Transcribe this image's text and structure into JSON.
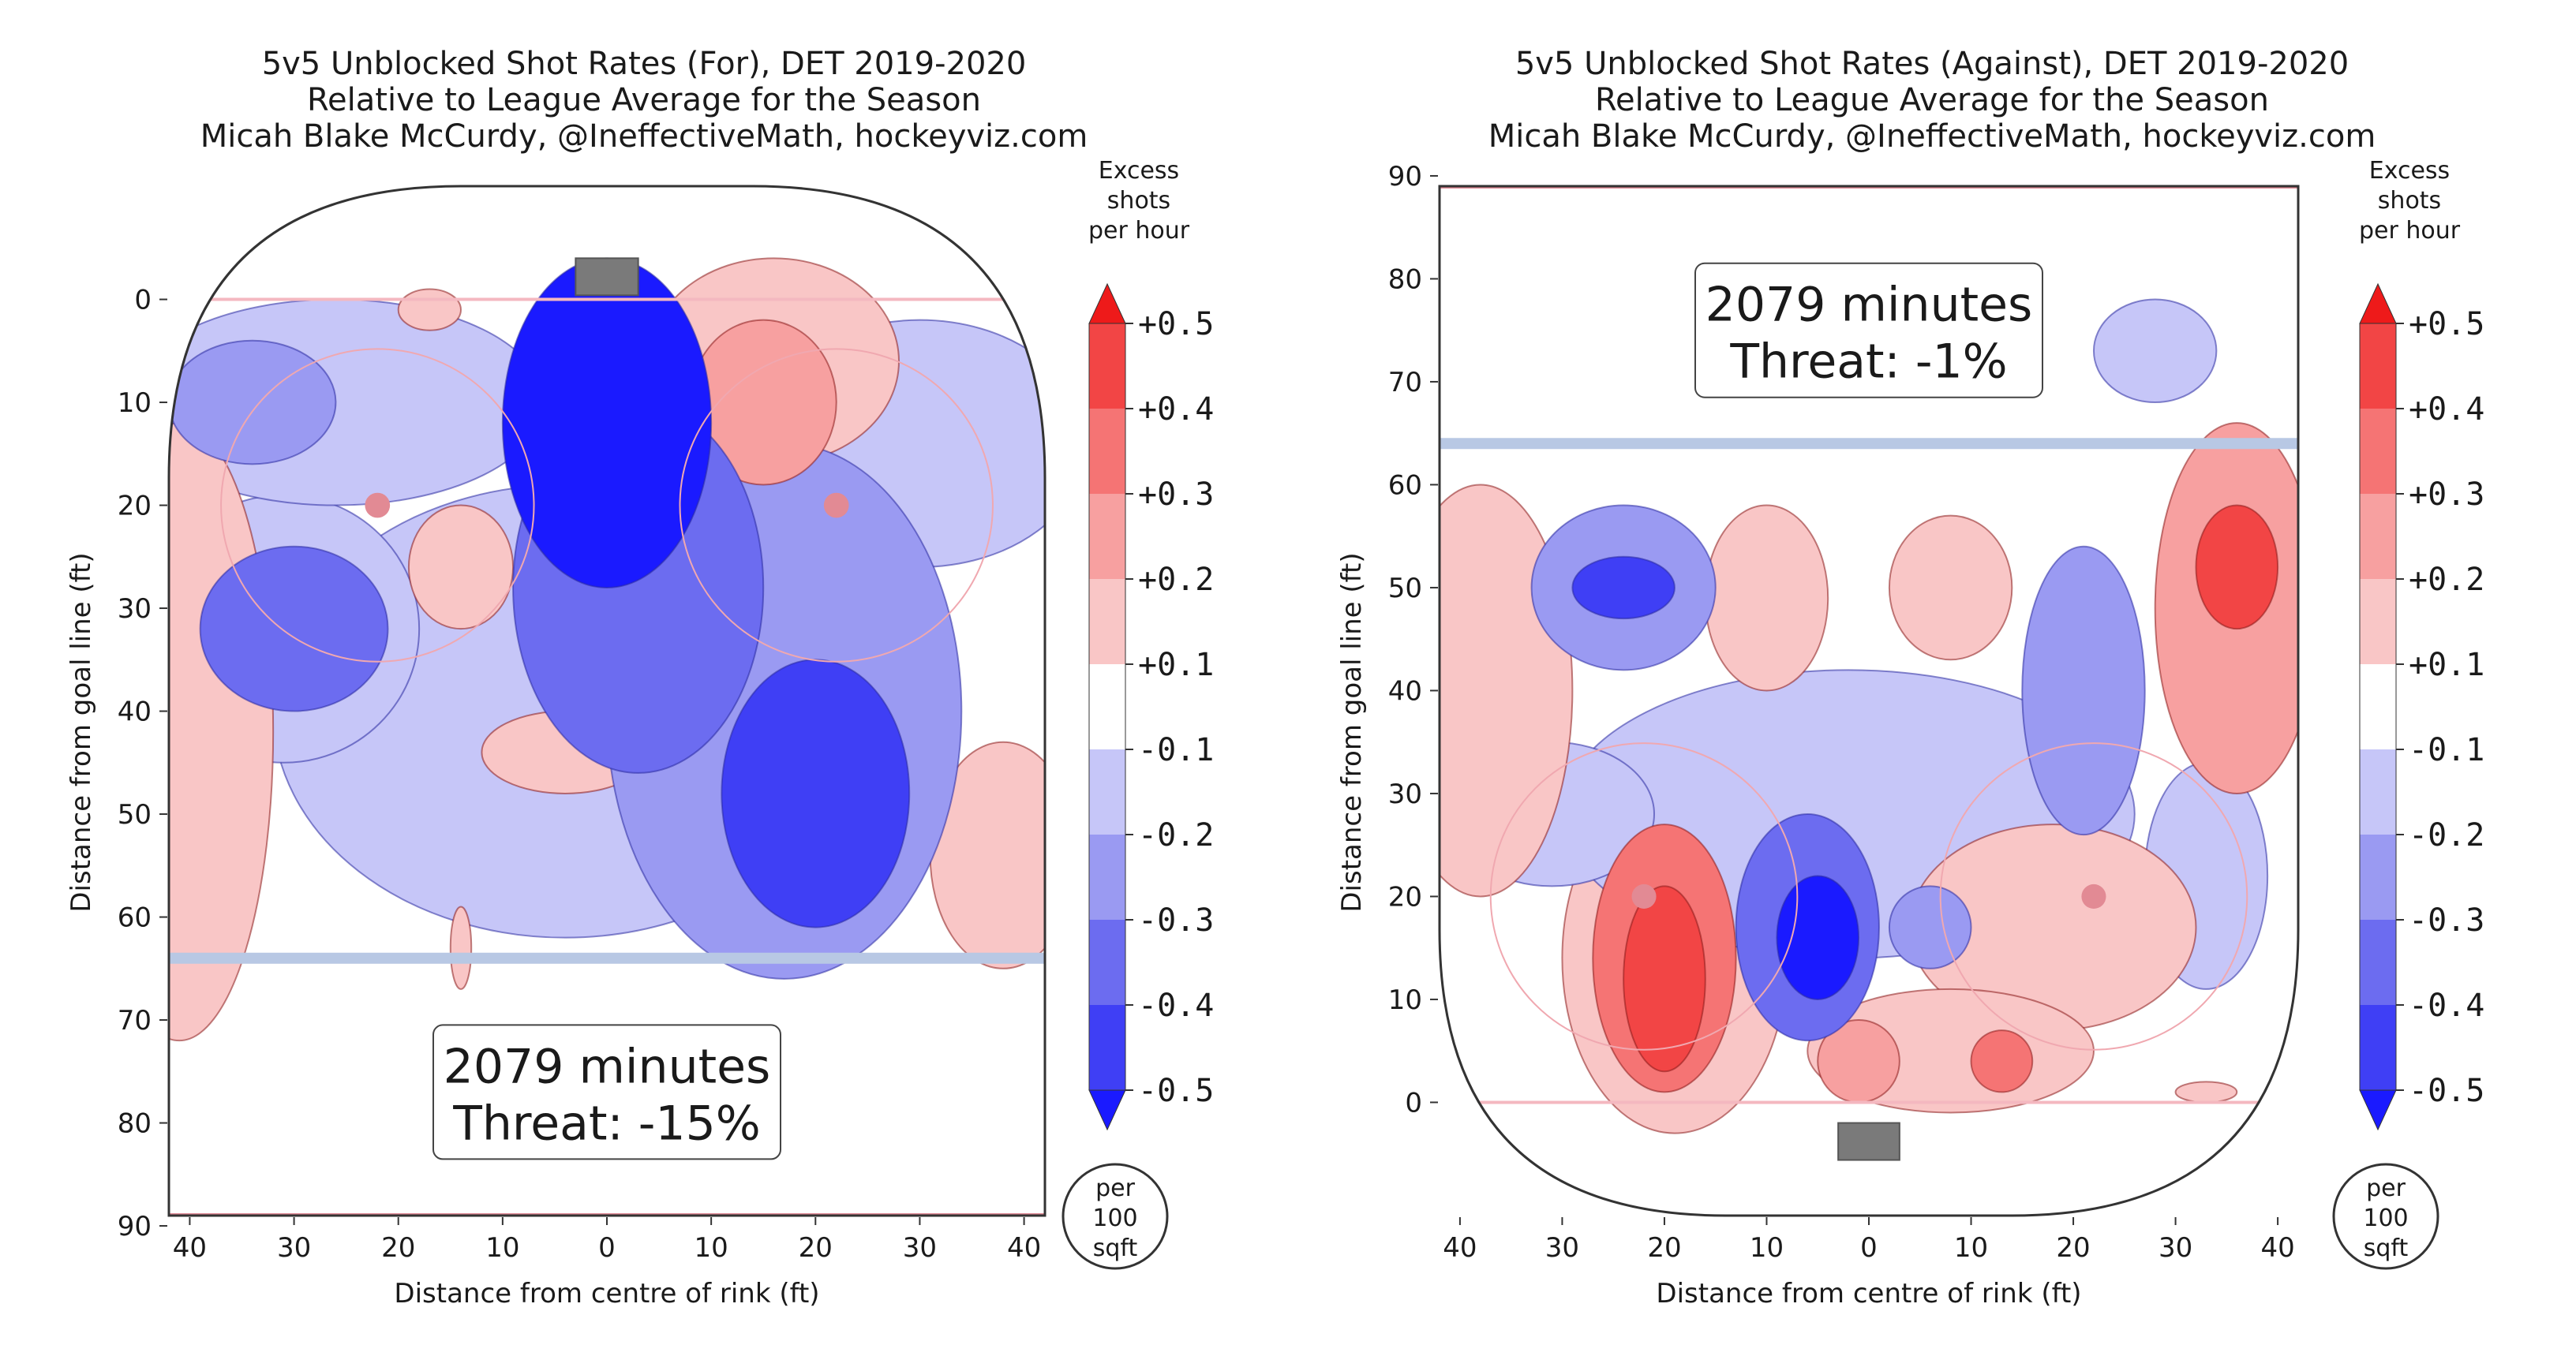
{
  "colors": {
    "scale": [
      "#1a1aff",
      "#3f3ff5",
      "#6c6cf0",
      "#9a9af2",
      "#c6c6f8",
      "#ffffff",
      "#f9c6c6",
      "#f7a0a0",
      "#f57474",
      "#f24545",
      "#ee1a1a"
    ],
    "rink_line": "#333333",
    "goal_line": "#f4b8c0",
    "blue_line": "#b8c8e4",
    "faceoff_circle": "#f0a8b0",
    "net": "#7a7a7a"
  },
  "colorbar": {
    "label_lines": [
      "Excess",
      "shots",
      "per hour"
    ],
    "ticks": [
      "+0.5",
      "+0.4",
      "+0.3",
      "+0.2",
      "+0.1",
      "-0.1",
      "-0.2",
      "-0.3",
      "-0.4",
      "-0.5"
    ],
    "unit_lines": [
      "per",
      "100",
      "sqft"
    ]
  },
  "chart_data": [
    {
      "type": "heatmap",
      "title": [
        "5v5 Unblocked Shot Rates (For), DET 2019-2020",
        "Relative to League Average for the Season",
        "Micah Blake McCurdy, @IneffectiveMath, hockeyviz.com"
      ],
      "xlabel": "Distance from centre of rink (ft)",
      "ylabel": "Distance from goal line (ft)",
      "x_ticks": [
        "40",
        "30",
        "20",
        "10",
        "0",
        "10",
        "20",
        "30",
        "40"
      ],
      "y_ticks": [
        "0",
        "10",
        "20",
        "30",
        "40",
        "50",
        "60",
        "70",
        "80",
        "90"
      ],
      "y_direction": "down",
      "xlim": [
        -42,
        42
      ],
      "ylim": [
        -11,
        89
      ],
      "annotation": [
        "2079 minutes",
        "Threat: -15%"
      ],
      "legend_range": [
        -0.5,
        0.5
      ],
      "blobs": [
        {
          "x": 0,
          "y": 12,
          "rx": 10,
          "ry": 16,
          "level": -5
        },
        {
          "x": 3,
          "y": 28,
          "rx": 12,
          "ry": 18,
          "level": -3
        },
        {
          "x": -4,
          "y": 40,
          "rx": 28,
          "ry": 22,
          "level": -1
        },
        {
          "x": 20,
          "y": 48,
          "rx": 9,
          "ry": 13,
          "level": -4
        },
        {
          "x": 17,
          "y": 40,
          "rx": 17,
          "ry": 26,
          "level": -2
        },
        {
          "x": -30,
          "y": 32,
          "rx": 9,
          "ry": 8,
          "level": -3
        },
        {
          "x": -31,
          "y": 32,
          "rx": 13,
          "ry": 13,
          "level": -1
        },
        {
          "x": -34,
          "y": 10,
          "rx": 8,
          "ry": 6,
          "level": -2
        },
        {
          "x": -26,
          "y": 10,
          "rx": 20,
          "ry": 10,
          "level": -1
        },
        {
          "x": 30,
          "y": 14,
          "rx": 16,
          "ry": 12,
          "level": -1
        },
        {
          "x": 15,
          "y": 10,
          "rx": 7,
          "ry": 8,
          "level": 2
        },
        {
          "x": 16,
          "y": 6,
          "rx": 12,
          "ry": 10,
          "level": 1
        },
        {
          "x": -41,
          "y": 42,
          "rx": 9,
          "ry": 30,
          "level": 1
        },
        {
          "x": 38,
          "y": 54,
          "rx": 7,
          "ry": 11,
          "level": 1
        },
        {
          "x": -4,
          "y": 44,
          "rx": 8,
          "ry": 4,
          "level": 1
        },
        {
          "x": -14,
          "y": 26,
          "rx": 5,
          "ry": 6,
          "level": 1
        },
        {
          "x": -17,
          "y": 1,
          "rx": 3,
          "ry": 2,
          "level": 1
        },
        {
          "x": -14,
          "y": 63,
          "rx": 1,
          "ry": 4,
          "level": 1
        }
      ]
    },
    {
      "type": "heatmap",
      "title": [
        "5v5 Unblocked Shot Rates (Against), DET 2019-2020",
        "Relative to League Average for the Season",
        "Micah Blake McCurdy, @IneffectiveMath, hockeyviz.com"
      ],
      "xlabel": "Distance from centre of rink (ft)",
      "ylabel": "Distance from goal line (ft)",
      "x_ticks": [
        "40",
        "30",
        "20",
        "10",
        "0",
        "10",
        "20",
        "30",
        "40"
      ],
      "y_ticks": [
        "90",
        "80",
        "70",
        "60",
        "50",
        "40",
        "30",
        "20",
        "10",
        "0"
      ],
      "y_direction": "up",
      "xlim": [
        -42,
        42
      ],
      "ylim": [
        -11,
        89
      ],
      "annotation": [
        "2079 minutes",
        "Threat: -1%"
      ],
      "legend_range": [
        -0.5,
        0.5
      ],
      "blobs": [
        {
          "x": -20,
          "y": 12,
          "rx": 4,
          "ry": 9,
          "level": 4
        },
        {
          "x": -20,
          "y": 14,
          "rx": 7,
          "ry": 13,
          "level": 3
        },
        {
          "x": -19,
          "y": 14,
          "rx": 11,
          "ry": 17,
          "level": 1
        },
        {
          "x": -5,
          "y": 16,
          "rx": 4,
          "ry": 6,
          "level": -5
        },
        {
          "x": -6,
          "y": 17,
          "rx": 7,
          "ry": 11,
          "level": -3
        },
        {
          "x": -2,
          "y": 28,
          "rx": 28,
          "ry": 14,
          "level": -1
        },
        {
          "x": -24,
          "y": 50,
          "rx": 5,
          "ry": 3,
          "level": -4
        },
        {
          "x": -24,
          "y": 50,
          "rx": 9,
          "ry": 8,
          "level": -2
        },
        {
          "x": -31,
          "y": 28,
          "rx": 10,
          "ry": 7,
          "level": -1
        },
        {
          "x": 21,
          "y": 40,
          "rx": 6,
          "ry": 14,
          "level": -2
        },
        {
          "x": 33,
          "y": 22,
          "rx": 6,
          "ry": 11,
          "level": -1
        },
        {
          "x": 6,
          "y": 17,
          "rx": 4,
          "ry": 4,
          "level": -2
        },
        {
          "x": 28,
          "y": 73,
          "rx": 6,
          "ry": 5,
          "level": -1
        },
        {
          "x": 36,
          "y": 52,
          "rx": 4,
          "ry": 6,
          "level": 4
        },
        {
          "x": 36,
          "y": 48,
          "rx": 8,
          "ry": 18,
          "level": 2
        },
        {
          "x": -38,
          "y": 40,
          "rx": 9,
          "ry": 20,
          "level": 1
        },
        {
          "x": 18,
          "y": 17,
          "rx": 14,
          "ry": 10,
          "level": 1
        },
        {
          "x": 8,
          "y": 5,
          "rx": 14,
          "ry": 6,
          "level": 1
        },
        {
          "x": 13,
          "y": 4,
          "rx": 3,
          "ry": 3,
          "level": 3
        },
        {
          "x": -1,
          "y": 4,
          "rx": 4,
          "ry": 4,
          "level": 2
        },
        {
          "x": -10,
          "y": 49,
          "rx": 6,
          "ry": 9,
          "level": 1
        },
        {
          "x": 8,
          "y": 50,
          "rx": 6,
          "ry": 7,
          "level": 1
        },
        {
          "x": 33,
          "y": 1,
          "rx": 3,
          "ry": 1,
          "level": 1
        }
      ]
    }
  ]
}
